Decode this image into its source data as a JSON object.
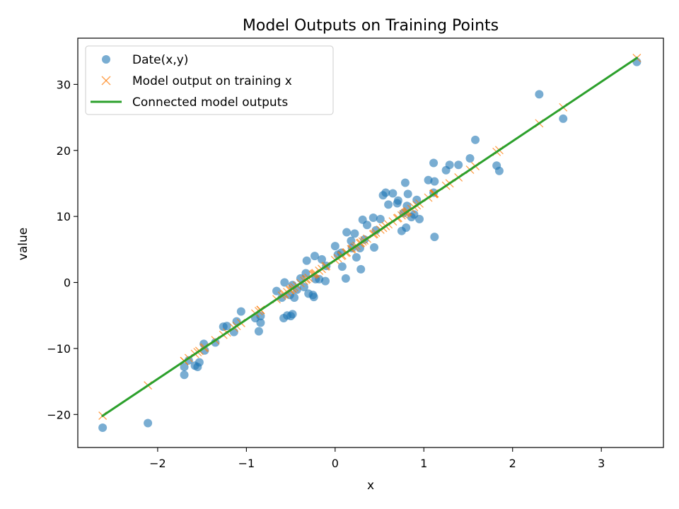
{
  "chart_data": {
    "type": "scatter",
    "title": "Model Outputs on Training Points",
    "xlabel": "x",
    "ylabel": "value",
    "xlim": [
      -2.9,
      3.7
    ],
    "ylim": [
      -25,
      37
    ],
    "xticks": [
      -2,
      -1,
      0,
      1,
      2,
      3
    ],
    "yticks": [
      -20,
      -10,
      0,
      10,
      20,
      30
    ],
    "grid": false,
    "legend_position": "top-left",
    "series": [
      {
        "name": "Date(x,y)",
        "kind": "scatter",
        "marker": "circle",
        "color": "#1f77b4",
        "points": [
          [
            -2.62,
            -22.0
          ],
          [
            -2.11,
            -21.3
          ],
          [
            -1.7,
            -12.8
          ],
          [
            -1.7,
            -14.0
          ],
          [
            -1.65,
            -11.8
          ],
          [
            -1.58,
            -12.6
          ],
          [
            -1.55,
            -12.8
          ],
          [
            -1.53,
            -12.1
          ],
          [
            -1.48,
            -9.3
          ],
          [
            -1.47,
            -10.3
          ],
          [
            -1.35,
            -9.1
          ],
          [
            -1.26,
            -6.7
          ],
          [
            -1.22,
            -6.6
          ],
          [
            -1.14,
            -7.5
          ],
          [
            -1.11,
            -5.9
          ],
          [
            -1.06,
            -4.4
          ],
          [
            -0.9,
            -5.4
          ],
          [
            -0.86,
            -7.4
          ],
          [
            -0.84,
            -6.1
          ],
          [
            -0.84,
            -5.1
          ],
          [
            -0.66,
            -1.3
          ],
          [
            -0.6,
            -2.3
          ],
          [
            -0.58,
            -5.4
          ],
          [
            -0.57,
            0.0
          ],
          [
            -0.54,
            -5.0
          ],
          [
            -0.51,
            -1.9
          ],
          [
            -0.5,
            -5.1
          ],
          [
            -0.48,
            -4.8
          ],
          [
            -0.48,
            -0.4
          ],
          [
            -0.46,
            -2.3
          ],
          [
            -0.43,
            -1.1
          ],
          [
            -0.39,
            0.6
          ],
          [
            -0.35,
            -0.7
          ],
          [
            -0.33,
            1.4
          ],
          [
            -0.32,
            3.3
          ],
          [
            -0.3,
            -1.7
          ],
          [
            -0.25,
            -1.9
          ],
          [
            -0.24,
            -2.2
          ],
          [
            -0.23,
            4.0
          ],
          [
            -0.22,
            0.5
          ],
          [
            -0.18,
            0.5
          ],
          [
            -0.15,
            3.5
          ],
          [
            -0.11,
            0.2
          ],
          [
            -0.1,
            2.5
          ],
          [
            0.0,
            5.5
          ],
          [
            0.03,
            4.2
          ],
          [
            0.07,
            4.5
          ],
          [
            0.08,
            2.4
          ],
          [
            0.12,
            0.6
          ],
          [
            0.13,
            7.6
          ],
          [
            0.18,
            6.3
          ],
          [
            0.19,
            5.2
          ],
          [
            0.22,
            7.4
          ],
          [
            0.24,
            3.8
          ],
          [
            0.28,
            5.2
          ],
          [
            0.29,
            2.0
          ],
          [
            0.31,
            9.5
          ],
          [
            0.33,
            6.5
          ],
          [
            0.36,
            8.7
          ],
          [
            0.43,
            9.8
          ],
          [
            0.44,
            5.3
          ],
          [
            0.46,
            7.9
          ],
          [
            0.51,
            9.6
          ],
          [
            0.54,
            13.2
          ],
          [
            0.57,
            13.6
          ],
          [
            0.6,
            11.8
          ],
          [
            0.65,
            13.5
          ],
          [
            0.7,
            12.0
          ],
          [
            0.71,
            12.4
          ],
          [
            0.75,
            7.8
          ],
          [
            0.77,
            10.5
          ],
          [
            0.79,
            15.1
          ],
          [
            0.8,
            8.3
          ],
          [
            0.81,
            11.6
          ],
          [
            0.82,
            13.4
          ],
          [
            0.86,
            9.9
          ],
          [
            0.89,
            10.3
          ],
          [
            0.92,
            12.5
          ],
          [
            0.95,
            9.6
          ],
          [
            1.05,
            15.5
          ],
          [
            1.11,
            18.1
          ],
          [
            1.11,
            13.6
          ],
          [
            1.12,
            15.3
          ],
          [
            1.12,
            6.9
          ],
          [
            1.25,
            17.0
          ],
          [
            1.29,
            17.8
          ],
          [
            1.39,
            17.8
          ],
          [
            1.52,
            18.8
          ],
          [
            1.58,
            21.6
          ],
          [
            1.82,
            17.7
          ],
          [
            1.85,
            16.9
          ],
          [
            2.3,
            28.5
          ],
          [
            2.57,
            24.8
          ],
          [
            3.4,
            33.4
          ]
        ]
      },
      {
        "name": "Model output on training x",
        "kind": "scatter",
        "marker": "x",
        "color": "#ff7f0e",
        "x": [
          -2.62,
          -2.11,
          -1.7,
          -1.7,
          -1.65,
          -1.58,
          -1.55,
          -1.53,
          -1.48,
          -1.47,
          -1.35,
          -1.26,
          -1.22,
          -1.14,
          -1.11,
          -1.06,
          -0.9,
          -0.86,
          -0.84,
          -0.84,
          -0.66,
          -0.6,
          -0.58,
          -0.57,
          -0.54,
          -0.51,
          -0.5,
          -0.48,
          -0.48,
          -0.46,
          -0.43,
          -0.39,
          -0.35,
          -0.33,
          -0.32,
          -0.3,
          -0.25,
          -0.24,
          -0.23,
          -0.22,
          -0.18,
          -0.15,
          -0.11,
          -0.1,
          0.0,
          0.03,
          0.07,
          0.08,
          0.12,
          0.13,
          0.18,
          0.19,
          0.22,
          0.24,
          0.28,
          0.29,
          0.31,
          0.33,
          0.36,
          0.43,
          0.44,
          0.46,
          0.51,
          0.54,
          0.57,
          0.6,
          0.65,
          0.7,
          0.71,
          0.75,
          0.77,
          0.79,
          0.8,
          0.81,
          0.82,
          0.86,
          0.89,
          0.92,
          0.95,
          1.05,
          1.11,
          1.11,
          1.12,
          1.12,
          1.25,
          1.29,
          1.39,
          1.52,
          1.58,
          1.82,
          1.85,
          2.3,
          2.57,
          3.4
        ],
        "fit": {
          "slope": 9.0,
          "intercept": 3.4
        }
      },
      {
        "name": "Connected model outputs",
        "kind": "line",
        "color": "#2ca02c",
        "from": [
          -2.62,
          -20.2
        ],
        "to": [
          3.4,
          34.0
        ]
      }
    ]
  }
}
